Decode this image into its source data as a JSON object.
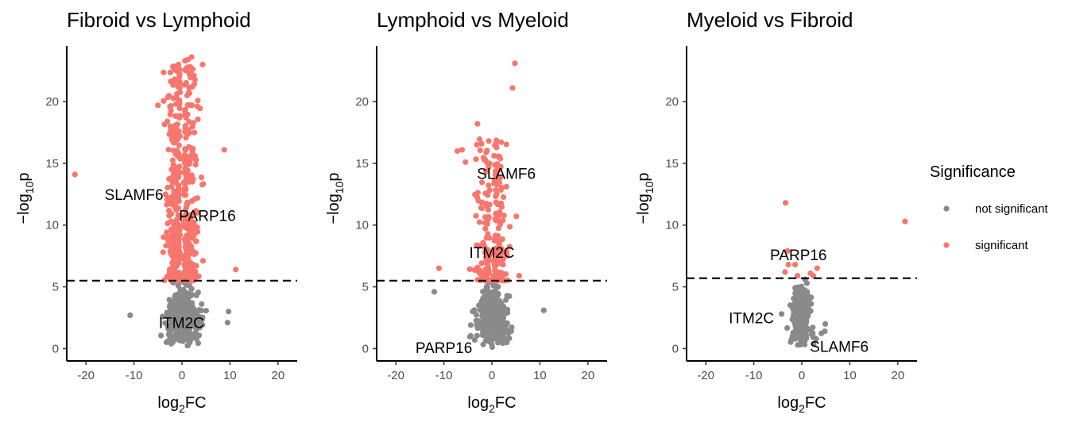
{
  "legend": {
    "title": "Significance",
    "items": [
      {
        "label": "not significant",
        "color": "#8a8a8a"
      },
      {
        "label": "significant",
        "color": "#f8766d"
      }
    ]
  },
  "chart_data": [
    {
      "type": "scatter",
      "title": "Fibroid vs Lymphoid",
      "xlabel": "log2FC",
      "ylabel": "-log10p",
      "xlim": [
        -24,
        24
      ],
      "ylim": [
        -1,
        24.5
      ],
      "xticks": [
        -20,
        -10,
        0,
        10,
        20
      ],
      "yticks": [
        0,
        5,
        10,
        15,
        20
      ],
      "threshold": 5.5,
      "grid": false,
      "cloud": {
        "x_spread": 4.5,
        "y_top": 23.5,
        "not_significant_points": 320,
        "significant_points": 520
      },
      "outliers": [
        {
          "x": -22.3,
          "y": 14.1,
          "significance": "significant"
        },
        {
          "x": 8.8,
          "y": 16.1,
          "significance": "significant"
        },
        {
          "x": 11.2,
          "y": 6.4,
          "significance": "significant"
        },
        {
          "x": -5.0,
          "y": 19.7,
          "significance": "significant"
        },
        {
          "x": 4.3,
          "y": 23.0,
          "significance": "significant"
        },
        {
          "x": 2.0,
          "y": 23.6,
          "significance": "significant"
        },
        {
          "x": -10.8,
          "y": 2.7,
          "significance": "not significant"
        },
        {
          "x": 9.7,
          "y": 3.0,
          "significance": "not significant"
        },
        {
          "x": 9.5,
          "y": 2.1,
          "significance": "not significant"
        }
      ],
      "genes": [
        {
          "label": "SLAMF6",
          "x": -10.0,
          "y": 12.5
        },
        {
          "label": "PARP16",
          "x": 5.3,
          "y": 10.8
        },
        {
          "label": "ITM2C",
          "x": -0.1,
          "y": 2.1
        }
      ]
    },
    {
      "type": "scatter",
      "title": "Lymphoid vs Myeloid",
      "xlabel": "log2FC",
      "ylabel": "-log10p",
      "xlim": [
        -24,
        24
      ],
      "ylim": [
        -1,
        24.5
      ],
      "xticks": [
        -20,
        -10,
        0,
        10,
        20
      ],
      "yticks": [
        0,
        5,
        10,
        15,
        20
      ],
      "threshold": 5.5,
      "grid": false,
      "cloud": {
        "x_spread": 3.8,
        "y_top": 17.0,
        "not_significant_points": 320,
        "significant_points": 230
      },
      "outliers": [
        {
          "x": 4.8,
          "y": 23.1,
          "significance": "significant"
        },
        {
          "x": 4.3,
          "y": 21.1,
          "significance": "significant"
        },
        {
          "x": -3.0,
          "y": 18.2,
          "significance": "significant"
        },
        {
          "x": -6.2,
          "y": 16.1,
          "significance": "significant"
        },
        {
          "x": -7.2,
          "y": 16.0,
          "significance": "significant"
        },
        {
          "x": -5.5,
          "y": 15.1,
          "significance": "significant"
        },
        {
          "x": -11.0,
          "y": 6.5,
          "significance": "significant"
        },
        {
          "x": 5.7,
          "y": 5.9,
          "significance": "significant"
        },
        {
          "x": -12.0,
          "y": 4.6,
          "significance": "not significant"
        },
        {
          "x": 10.8,
          "y": 3.1,
          "significance": "not significant"
        },
        {
          "x": 2.6,
          "y": 1.9,
          "significance": "not significant"
        },
        {
          "x": -3.6,
          "y": 0.7,
          "significance": "not significant"
        }
      ],
      "genes": [
        {
          "label": "SLAMF6",
          "x": 3.0,
          "y": 14.2
        },
        {
          "label": "ITM2C",
          "x": 0.0,
          "y": 7.8
        },
        {
          "label": "PARP16",
          "x": -10.0,
          "y": 0.1
        }
      ]
    },
    {
      "type": "scatter",
      "title": "Myeloid vs Fibroid",
      "xlabel": "log2FC",
      "ylabel": "-log10p",
      "xlim": [
        -24,
        24
      ],
      "ylim": [
        -1,
        24.5
      ],
      "xticks": [
        -20,
        -10,
        0,
        10,
        20
      ],
      "yticks": [
        0,
        5,
        10,
        15,
        20
      ],
      "threshold": 5.7,
      "grid": false,
      "cloud": {
        "x_spread": 2.6,
        "y_top": 5.3,
        "not_significant_points": 240,
        "significant_points": 0
      },
      "outliers": [
        {
          "x": -3.4,
          "y": 11.8,
          "significance": "significant"
        },
        {
          "x": 21.5,
          "y": 10.3,
          "significance": "significant"
        },
        {
          "x": -3.0,
          "y": 7.9,
          "significance": "significant"
        },
        {
          "x": -2.8,
          "y": 6.8,
          "significance": "significant"
        },
        {
          "x": -1.4,
          "y": 6.8,
          "significance": "significant"
        },
        {
          "x": -3.5,
          "y": 6.2,
          "significance": "significant"
        },
        {
          "x": 3.2,
          "y": 6.5,
          "significance": "significant"
        },
        {
          "x": 1.8,
          "y": 6.1,
          "significance": "significant"
        },
        {
          "x": 2.4,
          "y": 5.9,
          "significance": "significant"
        },
        {
          "x": -0.9,
          "y": 5.9,
          "significance": "significant"
        },
        {
          "x": 4.8,
          "y": 1.4,
          "significance": "not significant"
        },
        {
          "x": 4.9,
          "y": 2.0,
          "significance": "not significant"
        },
        {
          "x": -4.2,
          "y": 2.8,
          "significance": "not significant"
        }
      ],
      "genes": [
        {
          "label": "PARP16",
          "x": -0.7,
          "y": 7.6
        },
        {
          "label": "ITM2C",
          "x": -10.5,
          "y": 2.5
        },
        {
          "label": "SLAMF6",
          "x": 7.8,
          "y": 0.2
        }
      ]
    }
  ]
}
